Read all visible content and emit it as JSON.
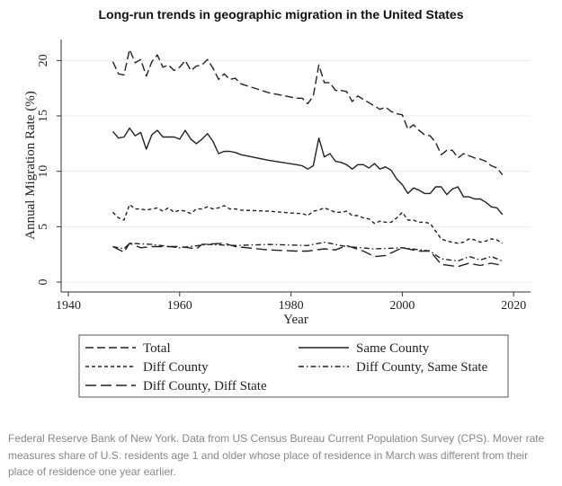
{
  "chart_data": {
    "type": "line",
    "title": "Long-run trends in geographic migration in the United States",
    "xlabel": "Year",
    "ylabel": "Annual Migration Rate (%)",
    "xlim": [
      1940,
      2020
    ],
    "ylim": [
      0,
      21
    ],
    "xticks": [
      1940,
      1960,
      1980,
      2000,
      2020
    ],
    "yticks": [
      0,
      5,
      10,
      15,
      20
    ],
    "grid": "horizontal",
    "legend_position": "bottom",
    "series": [
      {
        "name": "Total",
        "style": "long-dash",
        "x": [
          1948,
          1949,
          1950,
          1951,
          1952,
          1953,
          1954,
          1955,
          1956,
          1957,
          1958,
          1959,
          1960,
          1961,
          1962,
          1963,
          1964,
          1965,
          1966,
          1967,
          1968,
          1969,
          1970,
          1971,
          1976,
          1981,
          1982,
          1983,
          1984,
          1985,
          1986,
          1987,
          1988,
          1989,
          1990,
          1991,
          1992,
          1993,
          1994,
          1995,
          1996,
          1997,
          1998,
          1999,
          2000,
          2001,
          2002,
          2003,
          2004,
          2005,
          2006,
          2007,
          2008,
          2009,
          2010,
          2011,
          2012,
          2013,
          2014,
          2015,
          2016,
          2017,
          2018
        ],
        "y": [
          19.9,
          18.8,
          18.7,
          21.0,
          19.8,
          20.1,
          18.6,
          19.9,
          20.5,
          19.4,
          19.6,
          19.1,
          19.4,
          20.0,
          19.1,
          19.5,
          19.6,
          20.1,
          19.3,
          18.3,
          18.8,
          18.3,
          18.4,
          17.9,
          17.1,
          16.6,
          16.6,
          16.1,
          16.8,
          19.6,
          18.0,
          18.0,
          17.3,
          17.3,
          17.2,
          16.3,
          16.8,
          16.5,
          16.2,
          15.9,
          15.6,
          15.8,
          15.4,
          15.2,
          15.1,
          13.8,
          14.2,
          13.7,
          13.3,
          13.2,
          12.6,
          11.5,
          11.9,
          11.9,
          11.2,
          11.6,
          11.4,
          11.2,
          11.1,
          10.9,
          10.5,
          10.3,
          9.7
        ]
      },
      {
        "name": "Same County",
        "style": "solid",
        "x": [
          1948,
          1949,
          1950,
          1951,
          1952,
          1953,
          1954,
          1955,
          1956,
          1957,
          1958,
          1959,
          1960,
          1961,
          1962,
          1963,
          1964,
          1965,
          1966,
          1967,
          1968,
          1969,
          1970,
          1971,
          1976,
          1981,
          1982,
          1983,
          1984,
          1985,
          1986,
          1987,
          1988,
          1989,
          1990,
          1991,
          1992,
          1993,
          1994,
          1995,
          1996,
          1997,
          1998,
          1999,
          2000,
          2001,
          2002,
          2003,
          2004,
          2005,
          2006,
          2007,
          2008,
          2009,
          2010,
          2011,
          2012,
          2013,
          2014,
          2015,
          2016,
          2017,
          2018
        ],
        "y": [
          13.6,
          13.0,
          13.1,
          13.9,
          13.2,
          13.5,
          12.0,
          13.3,
          13.7,
          13.1,
          13.1,
          13.1,
          12.9,
          13.7,
          12.9,
          12.5,
          12.9,
          13.4,
          12.7,
          11.6,
          11.8,
          11.8,
          11.7,
          11.5,
          11.0,
          10.6,
          10.5,
          10.2,
          10.5,
          13.0,
          11.3,
          11.6,
          10.9,
          10.8,
          10.6,
          10.2,
          10.6,
          10.6,
          10.3,
          10.7,
          10.2,
          10.4,
          10.1,
          9.3,
          8.8,
          8.0,
          8.5,
          8.3,
          8.0,
          8.0,
          8.6,
          8.6,
          7.9,
          8.4,
          8.6,
          7.7,
          7.7,
          7.5,
          7.5,
          7.2,
          6.8,
          6.7,
          6.1
        ]
      },
      {
        "name": "Diff County",
        "style": "short-dash",
        "x": [
          1948,
          1949,
          1950,
          1951,
          1952,
          1953,
          1954,
          1955,
          1956,
          1957,
          1958,
          1959,
          1960,
          1961,
          1962,
          1963,
          1964,
          1965,
          1966,
          1967,
          1968,
          1969,
          1970,
          1971,
          1976,
          1981,
          1982,
          1983,
          1984,
          1985,
          1986,
          1987,
          1988,
          1989,
          1990,
          1991,
          1992,
          1993,
          1994,
          1995,
          1996,
          1997,
          1998,
          1999,
          2000,
          2001,
          2002,
          2003,
          2004,
          2005,
          2006,
          2007,
          2008,
          2009,
          2010,
          2011,
          2012,
          2013,
          2014,
          2015,
          2016,
          2017,
          2018
        ],
        "y": [
          6.3,
          5.8,
          5.6,
          7.0,
          6.6,
          6.6,
          6.5,
          6.6,
          6.7,
          6.4,
          6.7,
          6.3,
          6.5,
          6.4,
          6.2,
          6.6,
          6.6,
          6.8,
          6.6,
          6.7,
          6.9,
          6.6,
          6.6,
          6.5,
          6.4,
          6.2,
          6.2,
          6.0,
          6.4,
          6.5,
          6.7,
          6.5,
          6.3,
          6.3,
          6.4,
          6.0,
          6.0,
          5.8,
          5.7,
          5.3,
          5.5,
          5.4,
          5.4,
          5.8,
          6.3,
          5.6,
          5.6,
          5.4,
          5.4,
          5.3,
          4.6,
          3.9,
          3.7,
          3.6,
          3.5,
          3.6,
          3.9,
          3.8,
          3.6,
          3.7,
          3.9,
          3.8,
          3.5
        ]
      },
      {
        "name": "Diff County, Same State",
        "style": "dash-dot",
        "x": [
          1948,
          1950,
          1951,
          1955,
          1960,
          1965,
          1970,
          1976,
          1983,
          1986,
          1990,
          1995,
          2000,
          2005,
          2007,
          2010,
          2012,
          2014,
          2016,
          2018
        ],
        "y": [
          3.2,
          3.0,
          3.5,
          3.4,
          3.1,
          3.4,
          3.3,
          3.4,
          3.3,
          3.6,
          3.2,
          3.0,
          3.1,
          2.8,
          2.1,
          1.9,
          2.3,
          2.0,
          2.3,
          1.9
        ]
      },
      {
        "name": "Diff County, Diff State",
        "style": "dash",
        "x": [
          1948,
          1950,
          1951,
          1953,
          1955,
          1960,
          1963,
          1964,
          1968,
          1970,
          1976,
          1981,
          1983,
          1986,
          1988,
          1990,
          1993,
          1995,
          1997,
          2000,
          2003,
          2005,
          2007,
          2010,
          2012,
          2014,
          2016,
          2018
        ],
        "y": [
          3.2,
          2.7,
          3.5,
          3.1,
          3.2,
          3.2,
          3.0,
          3.4,
          3.5,
          3.2,
          2.9,
          2.8,
          2.8,
          3.0,
          2.9,
          3.3,
          2.8,
          2.3,
          2.4,
          3.1,
          2.8,
          2.8,
          1.6,
          1.4,
          1.7,
          1.5,
          1.7,
          1.5
        ]
      }
    ]
  },
  "caption": "Federal Reserve Bank of New York. Data from US Census Bureau Current Population Survey (CPS). Mover rate measures share of U.S. residents age 1 and older whose place of residence in March was different from their place of residence one year earlier."
}
